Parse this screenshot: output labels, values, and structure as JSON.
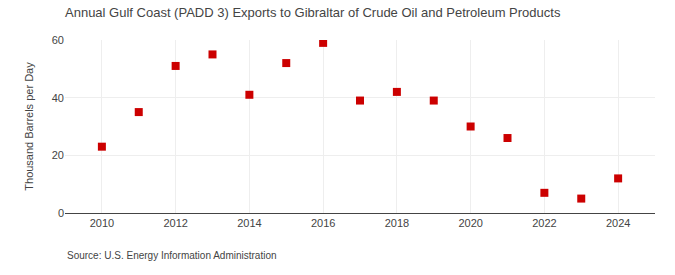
{
  "chart_data": {
    "type": "scatter",
    "title": "Annual Gulf Coast (PADD 3) Exports to Gibraltar of Crude Oil and Petroleum Products",
    "ylabel": "Thousand Barrels per Day",
    "annotations": [
      "Source: U.S. Energy Information Administration"
    ],
    "x": [
      2010,
      2011,
      2012,
      2013,
      2014,
      2015,
      2016,
      2017,
      2018,
      2019,
      2020,
      2021,
      2022,
      2023,
      2024
    ],
    "values": [
      23,
      35,
      51,
      55,
      41,
      52,
      59,
      39,
      42,
      39,
      30,
      26,
      7,
      5,
      12
    ],
    "color": "#cc0000",
    "marker": "square",
    "xlim": [
      2009,
      2025
    ],
    "xticks": [
      2010,
      2012,
      2014,
      2016,
      2018,
      2020,
      2022,
      2024
    ],
    "ylim": [
      0,
      60
    ],
    "yticks": [
      0,
      20,
      40,
      60
    ],
    "grid": true
  }
}
